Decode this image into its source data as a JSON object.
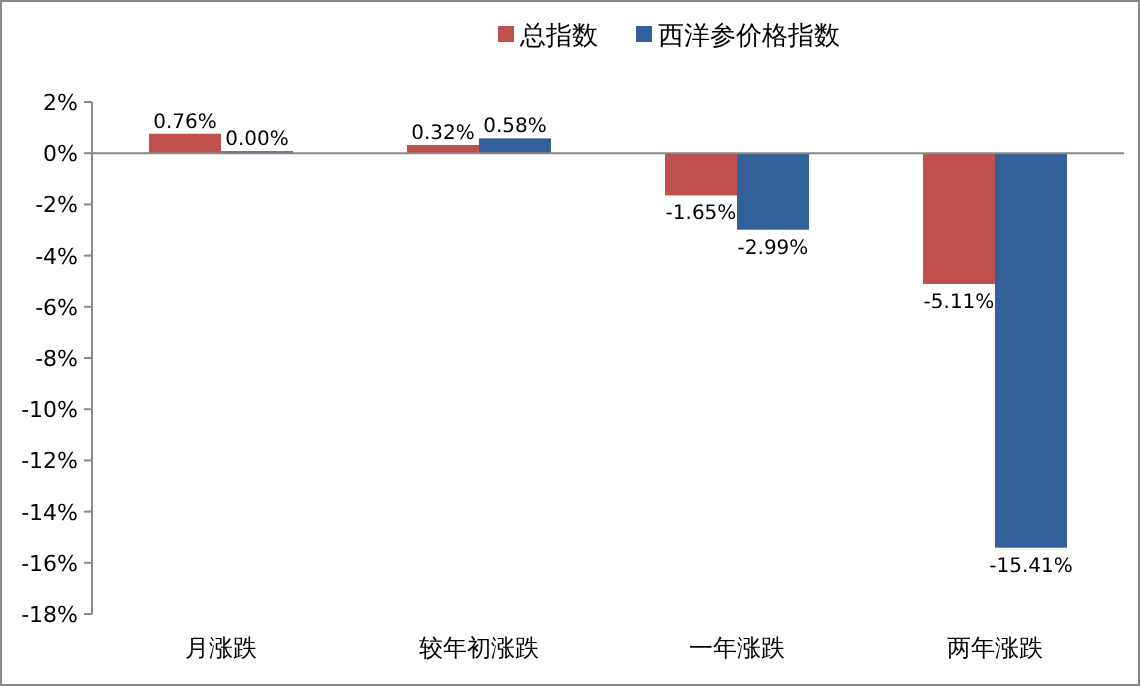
{
  "chart_data": {
    "type": "bar",
    "categories": [
      "月涨跌",
      "较年初涨跌",
      "一年涨跌",
      "两年涨跌"
    ],
    "series": [
      {
        "name": "总指数",
        "color": "#c0504d",
        "values": [
          0.76,
          0.32,
          -1.65,
          -5.11
        ],
        "value_labels": [
          "0.76%",
          "0.32%",
          "-1.65%",
          "-5.11%"
        ]
      },
      {
        "name": "西洋参价格指数",
        "color": "#34609a",
        "values": [
          0.0,
          0.58,
          -2.99,
          -15.41
        ],
        "value_labels": [
          "0.00%",
          "0.58%",
          "-2.99%",
          "-15.41%"
        ]
      }
    ],
    "ylim": [
      -18,
      2
    ],
    "yticks": [
      {
        "value": -18,
        "label": "-18%"
      },
      {
        "value": -16,
        "label": "-16%"
      },
      {
        "value": -14,
        "label": "-14%"
      },
      {
        "value": -12,
        "label": "-12%"
      },
      {
        "value": -10,
        "label": "-10%"
      },
      {
        "value": -8,
        "label": "-8%"
      },
      {
        "value": -6,
        "label": "-6%"
      },
      {
        "value": -4,
        "label": "-4%"
      },
      {
        "value": -2,
        "label": "-2%"
      },
      {
        "value": 0,
        "label": "0%"
      },
      {
        "value": 2,
        "label": "2%"
      }
    ],
    "legend": "top"
  }
}
